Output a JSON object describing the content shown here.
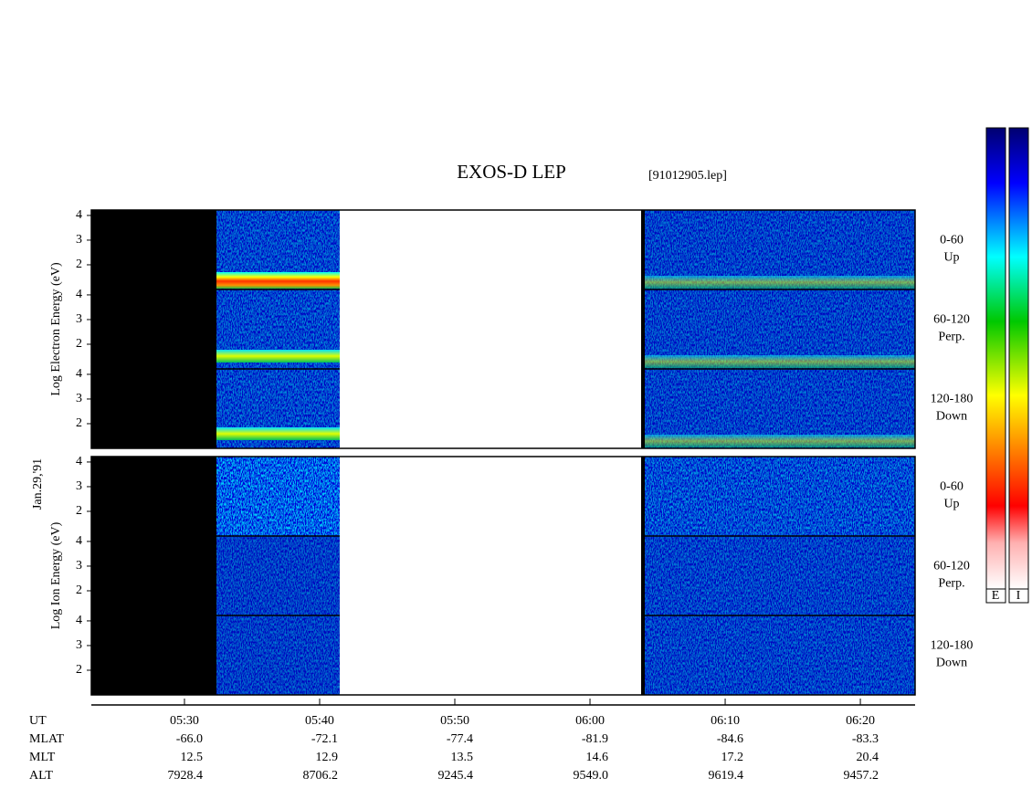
{
  "chart_data": {
    "type": "spectrogram",
    "title": "EXOS-D LEP",
    "file_label": "[91012905.lep]",
    "date_label": "Jan.29,'91",
    "groups": [
      {
        "ylabel": "Log Electron Energy (eV)"
      },
      {
        "ylabel": "Log Ion Energy (eV)"
      }
    ],
    "panels": [
      {
        "angle": "0-60",
        "direction": "Up"
      },
      {
        "angle": "60-120",
        "direction": "Perp."
      },
      {
        "angle": "120-180",
        "direction": "Down"
      }
    ],
    "ylim": [
      1.0,
      4.22
    ],
    "yticks": [
      2,
      3,
      4
    ],
    "xlabel": "UT",
    "xlim": [
      323.11,
      384.05
    ],
    "xticks": [
      {
        "value": 330,
        "label": "05:30"
      },
      {
        "value": 340,
        "label": "05:40"
      },
      {
        "value": 350,
        "label": "05:50"
      },
      {
        "value": 360,
        "label": "06:00"
      },
      {
        "value": 370,
        "label": "06:10"
      },
      {
        "value": 380,
        "label": "06:20"
      }
    ],
    "ephemeris": [
      {
        "name": "MLAT",
        "values": [
          "-66.0",
          "-72.1",
          "-77.4",
          "-81.9",
          "-84.6",
          "-83.3"
        ]
      },
      {
        "name": "MLT",
        "values": [
          "12.5",
          "12.9",
          "13.5",
          "14.6",
          "17.2",
          "20.4"
        ]
      },
      {
        "name": "ALT",
        "values": [
          "7928.4",
          "8706.2",
          "9245.4",
          "9549.0",
          "9619.4",
          "9457.2"
        ]
      }
    ],
    "colorbar_labels": [
      "E",
      "I"
    ]
  }
}
